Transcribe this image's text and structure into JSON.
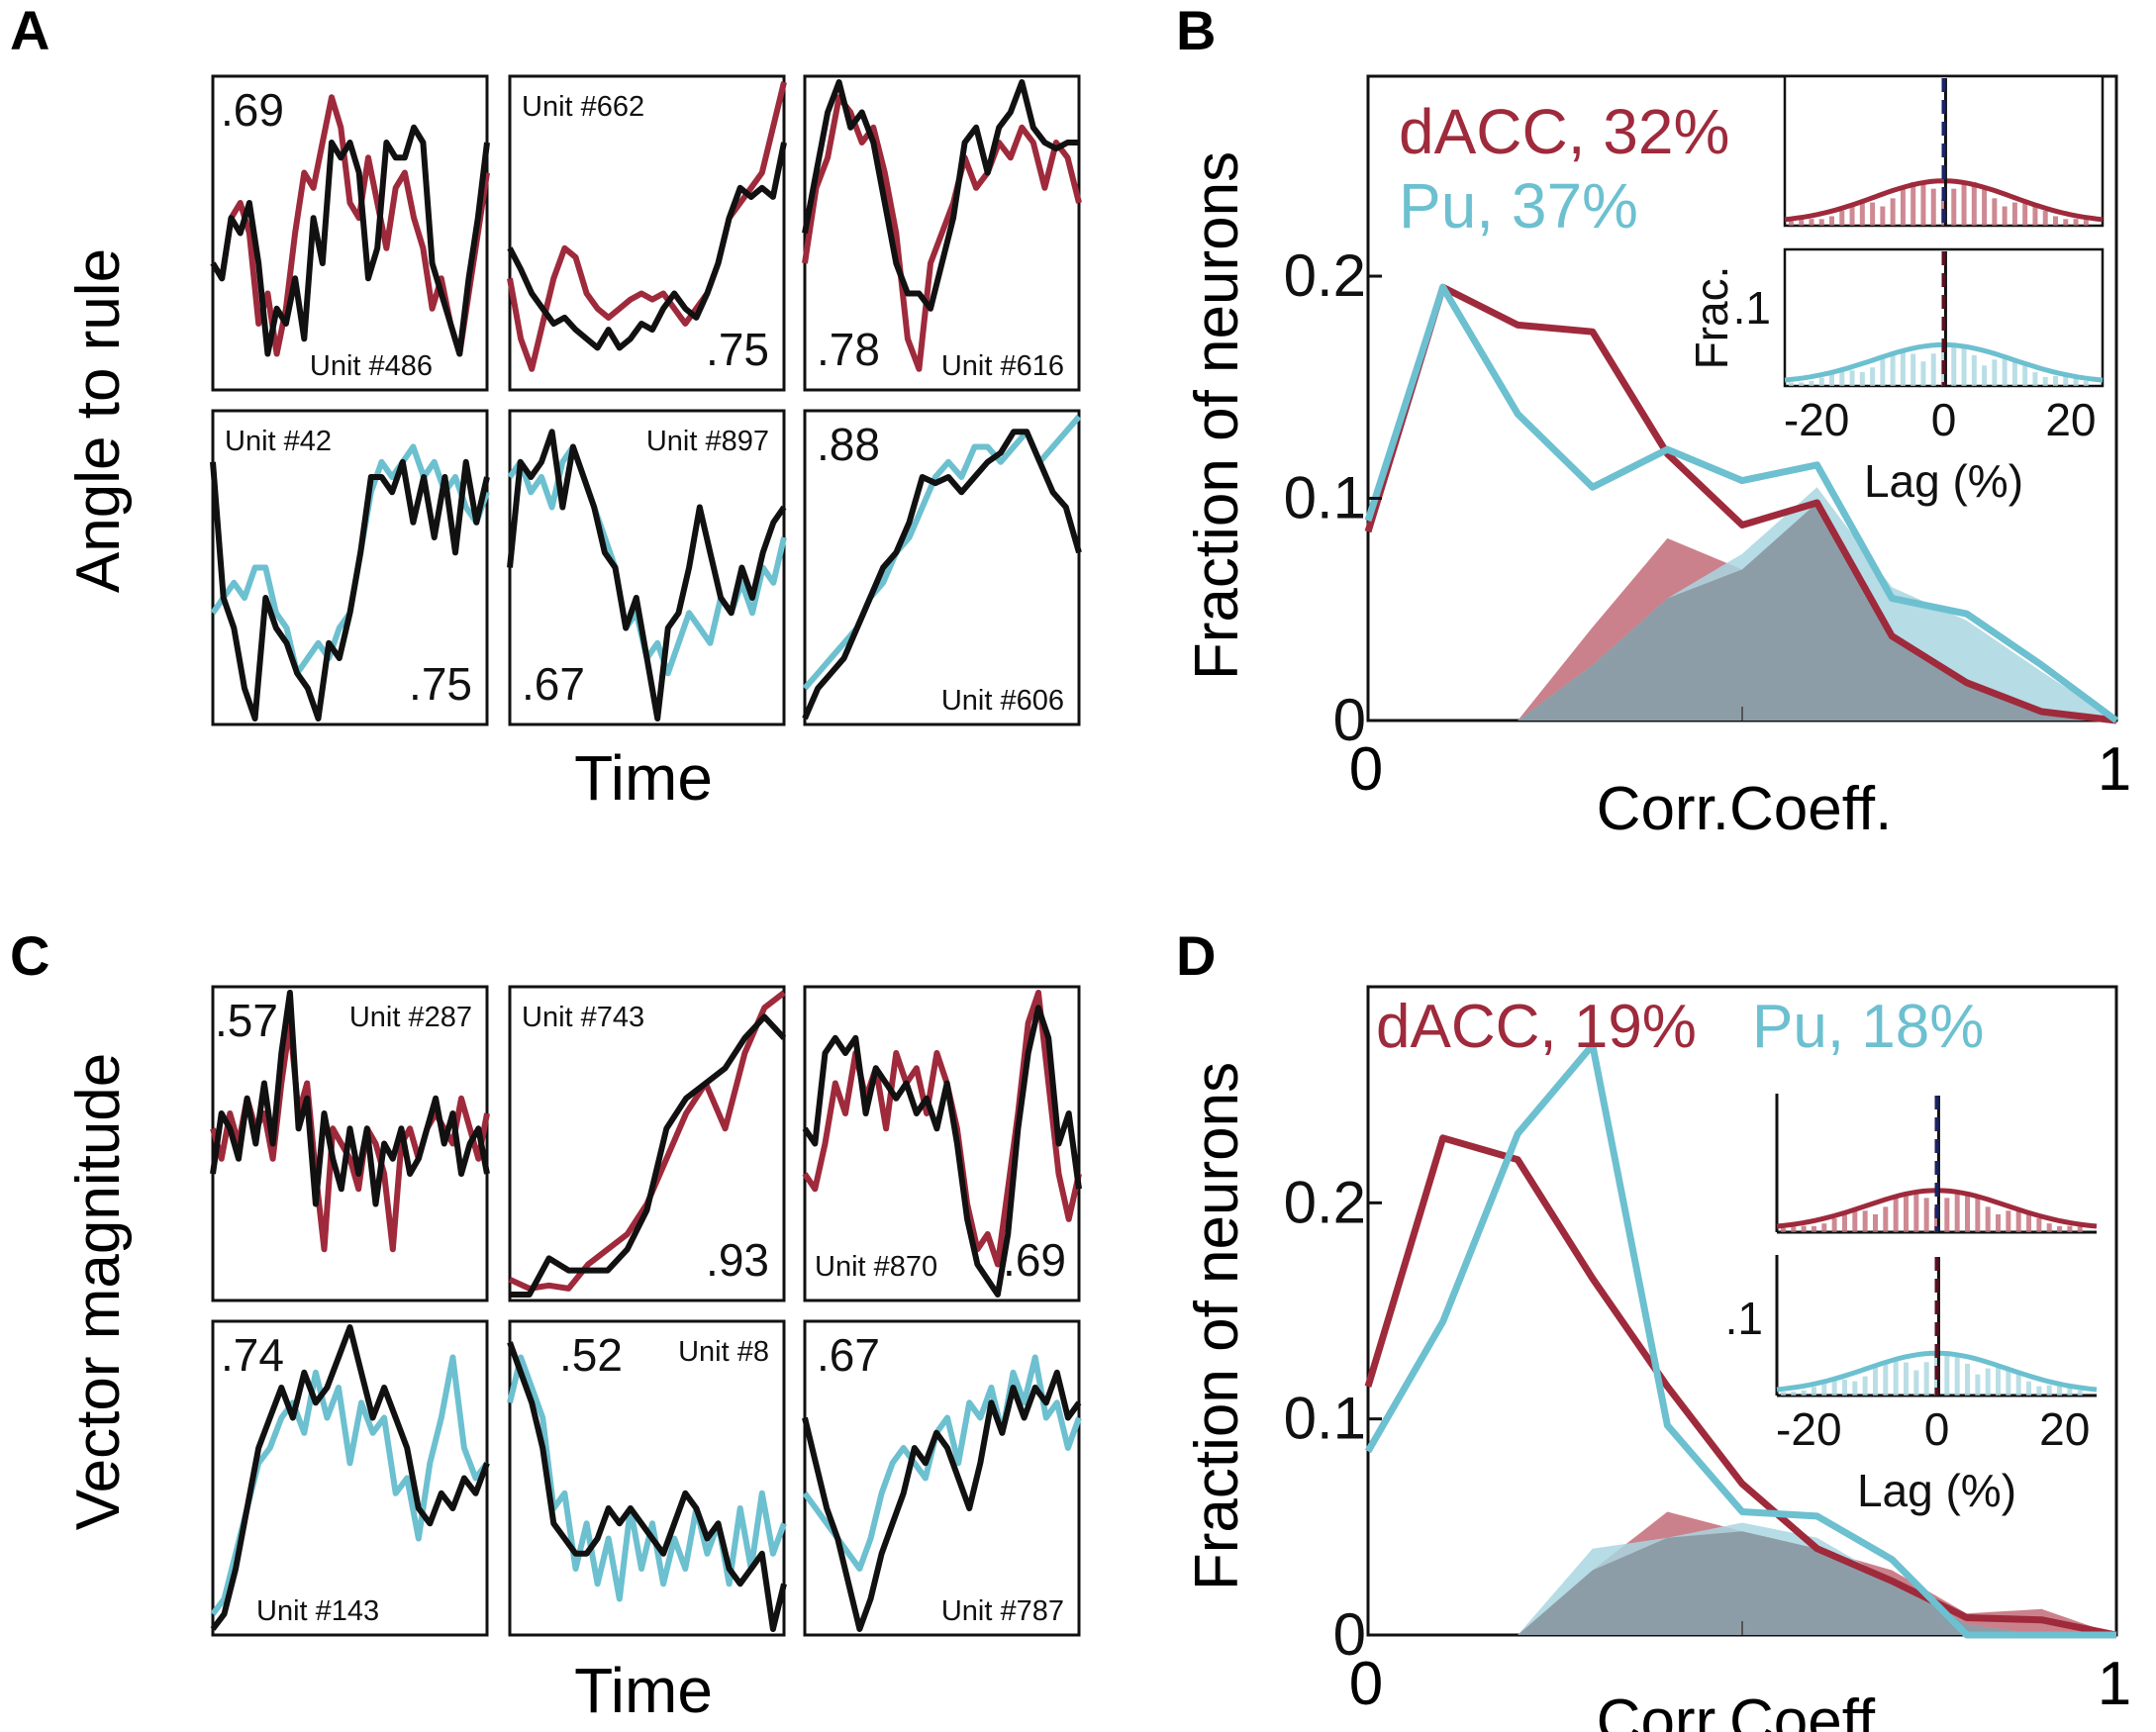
{
  "colors": {
    "dacc": "#9e2a3c",
    "pu": "#6cc0d0",
    "model": "#111111",
    "dacc_fill": "#c26b77",
    "pu_fill": "#a9d6e0",
    "overlap_fill": "#8a98a2",
    "dacc_lag_marker": "#1a2366",
    "pu_lag_marker": "#5a1020"
  },
  "panels": {
    "A": {
      "letter": "A",
      "ylabel": "Angle to rule",
      "xlabel": "Time",
      "units": [
        {
          "unit": "Unit #486",
          "r": ".69",
          "region": "dacc",
          "neuron": [
            0.4,
            0.35,
            0.55,
            0.6,
            0.5,
            0.2,
            0.3,
            0.1,
            0.25,
            0.5,
            0.7,
            0.65,
            0.8,
            0.95,
            0.85,
            0.6,
            0.55,
            0.75,
            0.6,
            0.45,
            0.65,
            0.7,
            0.55,
            0.45,
            0.25,
            0.35,
            0.2,
            0.1,
            0.3,
            0.5,
            0.7
          ],
          "model": [
            0.4,
            0.35,
            0.55,
            0.5,
            0.6,
            0.4,
            0.1,
            0.25,
            0.2,
            0.35,
            0.15,
            0.55,
            0.4,
            0.8,
            0.75,
            0.8,
            0.7,
            0.35,
            0.45,
            0.8,
            0.75,
            0.75,
            0.85,
            0.8,
            0.4,
            0.3,
            0.2,
            0.1,
            0.35,
            0.55,
            0.8
          ]
        },
        {
          "unit": "Unit #662",
          "r": ".75",
          "region": "dacc",
          "neuron": [
            0.35,
            0.15,
            0.05,
            0.2,
            0.35,
            0.45,
            0.42,
            0.3,
            0.25,
            0.22,
            0.25,
            0.28,
            0.3,
            0.28,
            0.3,
            0.25,
            0.2,
            0.25,
            0.3,
            0.4,
            0.55,
            0.6,
            0.65,
            0.7,
            0.85,
            1.0
          ],
          "model": [
            0.45,
            0.38,
            0.3,
            0.25,
            0.2,
            0.22,
            0.18,
            0.15,
            0.12,
            0.18,
            0.12,
            0.15,
            0.2,
            0.18,
            0.25,
            0.3,
            0.25,
            0.22,
            0.3,
            0.4,
            0.55,
            0.65,
            0.62,
            0.65,
            0.62,
            0.8
          ]
        },
        {
          "unit": "Unit #616",
          "r": ".78",
          "region": "dacc",
          "neuron": [
            0.4,
            0.65,
            0.75,
            0.95,
            0.9,
            0.8,
            0.85,
            0.7,
            0.5,
            0.15,
            0.05,
            0.4,
            0.5,
            0.6,
            0.75,
            0.65,
            0.7,
            0.8,
            0.75,
            0.85,
            0.8,
            0.65,
            0.8,
            0.75,
            0.6
          ],
          "model": [
            0.5,
            0.7,
            0.9,
            1.0,
            0.85,
            0.9,
            0.8,
            0.6,
            0.4,
            0.3,
            0.3,
            0.25,
            0.4,
            0.55,
            0.8,
            0.85,
            0.7,
            0.85,
            0.9,
            1.0,
            0.85,
            0.8,
            0.78,
            0.8,
            0.8
          ]
        },
        {
          "unit": "Unit #42",
          "r": ".75",
          "region": "pu",
          "neuron": [
            0.35,
            0.4,
            0.45,
            0.4,
            0.5,
            0.5,
            0.35,
            0.3,
            0.15,
            0.2,
            0.25,
            0.2,
            0.3,
            0.35,
            0.55,
            0.75,
            0.85,
            0.8,
            0.85,
            0.9,
            0.8,
            0.85,
            0.75,
            0.8,
            0.7,
            0.65,
            0.75
          ],
          "model": [
            0.85,
            0.4,
            0.3,
            0.1,
            0.0,
            0.4,
            0.3,
            0.25,
            0.15,
            0.1,
            0.0,
            0.25,
            0.2,
            0.35,
            0.55,
            0.8,
            0.8,
            0.75,
            0.85,
            0.65,
            0.8,
            0.6,
            0.8,
            0.55,
            0.85,
            0.65,
            0.8
          ]
        },
        {
          "unit": "Unit #897",
          "r": ".67",
          "region": "pu",
          "neuron": [
            0.8,
            0.85,
            0.75,
            0.8,
            0.7,
            0.85,
            0.9,
            0.8,
            0.7,
            0.6,
            0.5,
            0.3,
            0.35,
            0.2,
            0.25,
            0.15,
            0.25,
            0.35,
            0.3,
            0.25,
            0.4,
            0.35,
            0.45,
            0.35,
            0.5,
            0.45,
            0.6
          ],
          "model": [
            0.5,
            0.85,
            0.8,
            0.85,
            0.95,
            0.7,
            0.9,
            0.8,
            0.7,
            0.55,
            0.5,
            0.3,
            0.4,
            0.2,
            0.0,
            0.3,
            0.35,
            0.5,
            0.7,
            0.55,
            0.4,
            0.35,
            0.5,
            0.4,
            0.55,
            0.65,
            0.7
          ]
        },
        {
          "unit": "Unit #606",
          "r": ".88",
          "region": "pu",
          "neuron": [
            0.1,
            0.15,
            0.2,
            0.25,
            0.3,
            0.4,
            0.45,
            0.55,
            0.6,
            0.7,
            0.8,
            0.85,
            0.8,
            0.9,
            0.9,
            0.85,
            0.9,
            0.95,
            0.85,
            0.9,
            0.95,
            1.0
          ],
          "model": [
            0.0,
            0.1,
            0.15,
            0.2,
            0.3,
            0.4,
            0.5,
            0.55,
            0.65,
            0.8,
            0.78,
            0.8,
            0.75,
            0.8,
            0.85,
            0.88,
            0.95,
            0.95,
            0.85,
            0.75,
            0.7,
            0.55
          ]
        }
      ]
    },
    "B": {
      "letter": "B",
      "chart_data": {
        "type": "line",
        "xlabel": "Corr.Coeff.",
        "ylabel": "Fraction of neurons",
        "xlim": [
          0,
          1
        ],
        "ylim": [
          0,
          0.29
        ],
        "x_ticks": [
          "0",
          "1"
        ],
        "y_ticks": [
          "0",
          "0.1",
          "0.2"
        ],
        "y_tick_values": [
          0,
          0.1,
          0.2
        ],
        "x": [
          0,
          0.1,
          0.2,
          0.3,
          0.4,
          0.5,
          0.6,
          0.7,
          0.8,
          0.9,
          1.0
        ],
        "series": [
          {
            "name": "dACC, 32%",
            "region": "dacc",
            "values": [
              0.085,
              0.195,
              0.178,
              0.175,
              0.12,
              0.088,
              0.098,
              0.038,
              0.017,
              0.004,
              0.0
            ]
          },
          {
            "name": "Pu, 37%",
            "region": "pu",
            "values": [
              0.09,
              0.195,
              0.138,
              0.105,
              0.122,
              0.108,
              0.115,
              0.055,
              0.048,
              0.025,
              0.0
            ]
          }
        ],
        "shuffle_areas": [
          {
            "region": "dacc",
            "x": [
              0.2,
              0.3,
              0.4,
              0.5,
              0.6,
              0.7,
              0.8,
              0.9,
              1.0
            ],
            "values": [
              0.0,
              0.042,
              0.082,
              0.068,
              0.098,
              0.04,
              0.018,
              0.004,
              0.0
            ]
          },
          {
            "region": "pu",
            "x": [
              0.2,
              0.3,
              0.4,
              0.5,
              0.6,
              0.7,
              0.8,
              0.9,
              1.0
            ],
            "values": [
              0.0,
              0.025,
              0.055,
              0.075,
              0.105,
              0.06,
              0.045,
              0.022,
              0.0
            ]
          }
        ],
        "inset": {
          "xlabel": "Lag (%)",
          "ylabel": "Frac.",
          "x_ticks": [
            "-20",
            "0",
            "20"
          ],
          "y_tick": ".1"
        }
      }
    },
    "C": {
      "letter": "C",
      "ylabel": "Vector magnitude",
      "xlabel": "Time",
      "units": [
        {
          "unit": "Unit #287",
          "r": ".57",
          "region": "dacc",
          "neuron": [
            0.55,
            0.45,
            0.6,
            0.5,
            0.65,
            0.55,
            0.6,
            0.45,
            0.7,
            0.9,
            0.6,
            0.7,
            0.4,
            0.15,
            0.55,
            0.5,
            0.45,
            0.35,
            0.55,
            0.5,
            0.4,
            0.15,
            0.5,
            0.55,
            0.45,
            0.55,
            0.6,
            0.55,
            0.5,
            0.65,
            0.55,
            0.45,
            0.6
          ],
          "model": [
            0.4,
            0.6,
            0.55,
            0.45,
            0.65,
            0.5,
            0.7,
            0.5,
            0.8,
            1.0,
            0.55,
            0.65,
            0.3,
            0.6,
            0.45,
            0.35,
            0.55,
            0.4,
            0.55,
            0.3,
            0.5,
            0.45,
            0.55,
            0.4,
            0.45,
            0.55,
            0.65,
            0.5,
            0.6,
            0.4,
            0.5,
            0.55,
            0.4
          ]
        },
        {
          "unit": "Unit #743",
          "r": ".93",
          "region": "dacc",
          "neuron": [
            0.05,
            0.02,
            0.03,
            0.02,
            0.1,
            0.15,
            0.2,
            0.3,
            0.45,
            0.6,
            0.7,
            0.55,
            0.8,
            0.95,
            1.0
          ],
          "model": [
            0.0,
            0.0,
            0.12,
            0.08,
            0.08,
            0.08,
            0.15,
            0.28,
            0.55,
            0.65,
            0.7,
            0.75,
            0.85,
            0.92,
            0.85
          ]
        },
        {
          "unit": "Unit #870",
          "r": ".69",
          "region": "dacc",
          "neuron": [
            0.4,
            0.35,
            0.5,
            0.7,
            0.6,
            0.8,
            0.65,
            0.75,
            0.55,
            0.8,
            0.7,
            0.75,
            0.6,
            0.8,
            0.7,
            0.55,
            0.3,
            0.15,
            0.2,
            0.1,
            0.35,
            0.6,
            0.9,
            1.0,
            0.7,
            0.4,
            0.25,
            0.4
          ],
          "model": [
            0.55,
            0.5,
            0.8,
            0.85,
            0.8,
            0.85,
            0.6,
            0.75,
            0.7,
            0.65,
            0.7,
            0.6,
            0.65,
            0.55,
            0.7,
            0.5,
            0.25,
            0.1,
            0.05,
            0.0,
            0.2,
            0.55,
            0.8,
            0.95,
            0.85,
            0.5,
            0.6,
            0.35
          ]
        },
        {
          "unit": "Unit #143",
          "r": ".74",
          "region": "pu",
          "neuron": [
            0.05,
            0.1,
            0.25,
            0.4,
            0.55,
            0.6,
            0.7,
            0.75,
            0.65,
            0.85,
            0.7,
            0.8,
            0.55,
            0.75,
            0.65,
            0.7,
            0.45,
            0.5,
            0.3,
            0.55,
            0.7,
            0.9,
            0.6,
            0.5,
            0.55
          ],
          "model": [
            0.0,
            0.05,
            0.2,
            0.4,
            0.6,
            0.7,
            0.8,
            0.7,
            0.85,
            0.75,
            0.8,
            0.9,
            1.0,
            0.85,
            0.7,
            0.8,
            0.7,
            0.6,
            0.4,
            0.35,
            0.45,
            0.4,
            0.5,
            0.45,
            0.55
          ]
        },
        {
          "unit": "Unit #8",
          "r": ".52",
          "region": "pu",
          "neuron": [
            0.75,
            0.9,
            0.8,
            0.7,
            0.4,
            0.45,
            0.2,
            0.35,
            0.15,
            0.3,
            0.1,
            0.4,
            0.2,
            0.35,
            0.15,
            0.3,
            0.2,
            0.4,
            0.25,
            0.35,
            0.15,
            0.4,
            0.2,
            0.45,
            0.25,
            0.35
          ],
          "model": [
            0.95,
            0.85,
            0.75,
            0.6,
            0.35,
            0.3,
            0.25,
            0.25,
            0.3,
            0.4,
            0.35,
            0.4,
            0.35,
            0.3,
            0.25,
            0.35,
            0.45,
            0.4,
            0.3,
            0.35,
            0.2,
            0.15,
            0.2,
            0.25,
            0.0,
            0.15
          ]
        },
        {
          "unit": "Unit #787",
          "r": ".67",
          "region": "pu",
          "neuron": [
            0.45,
            0.4,
            0.35,
            0.3,
            0.25,
            0.2,
            0.3,
            0.45,
            0.55,
            0.6,
            0.55,
            0.5,
            0.65,
            0.7,
            0.55,
            0.75,
            0.7,
            0.8,
            0.65,
            0.85,
            0.75,
            0.9,
            0.7,
            0.75,
            0.6,
            0.7
          ],
          "model": [
            0.7,
            0.55,
            0.4,
            0.3,
            0.15,
            0.0,
            0.1,
            0.25,
            0.35,
            0.45,
            0.6,
            0.55,
            0.65,
            0.6,
            0.5,
            0.4,
            0.55,
            0.75,
            0.65,
            0.8,
            0.7,
            0.8,
            0.75,
            0.85,
            0.7,
            0.75
          ]
        }
      ]
    },
    "D": {
      "letter": "D",
      "chart_data": {
        "type": "line",
        "xlabel": "Corr.Coeff.",
        "ylabel": "Fraction of neurons",
        "xlim": [
          0,
          1
        ],
        "ylim": [
          0,
          0.3
        ],
        "x_ticks": [
          "0",
          "1"
        ],
        "y_ticks": [
          "0",
          "0.1",
          "0.2"
        ],
        "y_tick_values": [
          0,
          0.1,
          0.2
        ],
        "x": [
          0,
          0.1,
          0.2,
          0.3,
          0.4,
          0.5,
          0.6,
          0.7,
          0.8,
          0.9,
          1.0
        ],
        "series": [
          {
            "name": "dACC, 19%",
            "region": "dacc",
            "values": [
              0.115,
              0.23,
              0.22,
              0.165,
              0.115,
              0.07,
              0.04,
              0.025,
              0.008,
              0.007,
              0.0
            ]
          },
          {
            "name": "Pu, 18%",
            "region": "pu",
            "values": [
              0.085,
              0.145,
              0.232,
              0.273,
              0.097,
              0.057,
              0.055,
              0.035,
              0.0,
              0.0,
              0.0
            ]
          }
        ],
        "shuffle_areas": [
          {
            "region": "dacc",
            "x": [
              0.2,
              0.3,
              0.4,
              0.5,
              0.6,
              0.7,
              0.8,
              0.9,
              1.0
            ],
            "values": [
              0.0,
              0.03,
              0.057,
              0.048,
              0.04,
              0.03,
              0.01,
              0.012,
              0.0
            ]
          },
          {
            "region": "pu",
            "x": [
              0.2,
              0.3,
              0.4,
              0.5,
              0.6,
              0.7,
              0.8,
              0.9,
              1.0
            ],
            "values": [
              0.0,
              0.04,
              0.045,
              0.052,
              0.045,
              0.025,
              0.005,
              0.0,
              0.0
            ]
          }
        ],
        "inset": {
          "xlabel": "Lag (%)",
          "x_ticks": [
            "-20",
            "0",
            "20"
          ],
          "y_tick": ".1"
        }
      }
    }
  }
}
